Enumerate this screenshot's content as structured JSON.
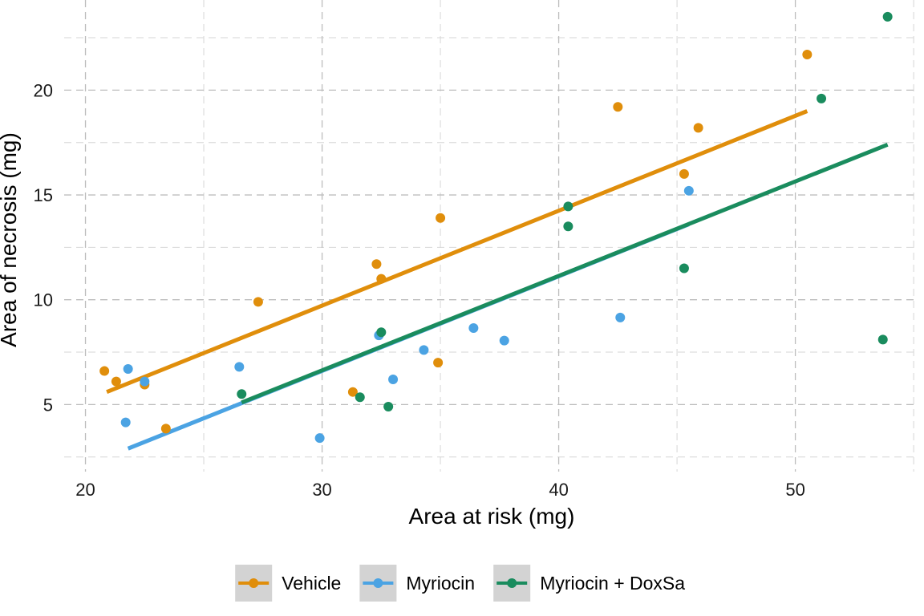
{
  "chart_data": {
    "type": "scatter",
    "xlabel": "Area at risk (mg)",
    "ylabel": "Area of necrosis (mg)",
    "xlim": [
      19.1,
      55.2
    ],
    "ylim": [
      1.8,
      24.3
    ],
    "x_ticks": [
      20,
      30,
      40,
      50
    ],
    "y_ticks": [
      5,
      10,
      15,
      20
    ],
    "grid": true,
    "legend_position": "bottom",
    "series": [
      {
        "name": "Vehicle",
        "color": "#E08E0B",
        "points": [
          [
            20.8,
            6.6
          ],
          [
            21.3,
            6.1
          ],
          [
            22.5,
            5.95
          ],
          [
            23.4,
            3.85
          ],
          [
            27.3,
            9.9
          ],
          [
            31.3,
            5.6
          ],
          [
            32.3,
            11.7
          ],
          [
            32.5,
            11.0
          ],
          [
            34.9,
            7.0
          ],
          [
            35.0,
            13.9
          ],
          [
            42.5,
            19.2
          ],
          [
            45.3,
            16.0
          ],
          [
            45.9,
            18.2
          ],
          [
            50.5,
            21.7
          ]
        ],
        "fit": [
          [
            20.9,
            5.6
          ],
          [
            50.5,
            19.0
          ]
        ]
      },
      {
        "name": "Myriocin",
        "color": "#4BA3E3",
        "points": [
          [
            21.7,
            4.15
          ],
          [
            21.8,
            6.7
          ],
          [
            22.5,
            6.1
          ],
          [
            26.5,
            6.8
          ],
          [
            29.9,
            3.4
          ],
          [
            32.4,
            8.3
          ],
          [
            33.0,
            6.2
          ],
          [
            34.3,
            7.6
          ],
          [
            36.4,
            8.65
          ],
          [
            37.7,
            8.05
          ],
          [
            42.6,
            9.15
          ],
          [
            45.5,
            15.2
          ]
        ],
        "fit": [
          [
            21.8,
            2.9
          ],
          [
            45.5,
            13.6
          ]
        ]
      },
      {
        "name": "Myriocin + DoxSa",
        "color": "#1A8C5E",
        "points": [
          [
            26.6,
            5.5
          ],
          [
            31.6,
            5.35
          ],
          [
            32.5,
            8.45
          ],
          [
            32.8,
            4.9
          ],
          [
            40.4,
            14.45
          ],
          [
            40.4,
            13.5
          ],
          [
            45.3,
            11.5
          ],
          [
            51.1,
            19.6
          ],
          [
            53.7,
            8.1
          ],
          [
            53.9,
            23.5
          ]
        ],
        "fit": [
          [
            26.6,
            5.1
          ],
          [
            53.9,
            17.4
          ]
        ]
      }
    ]
  }
}
